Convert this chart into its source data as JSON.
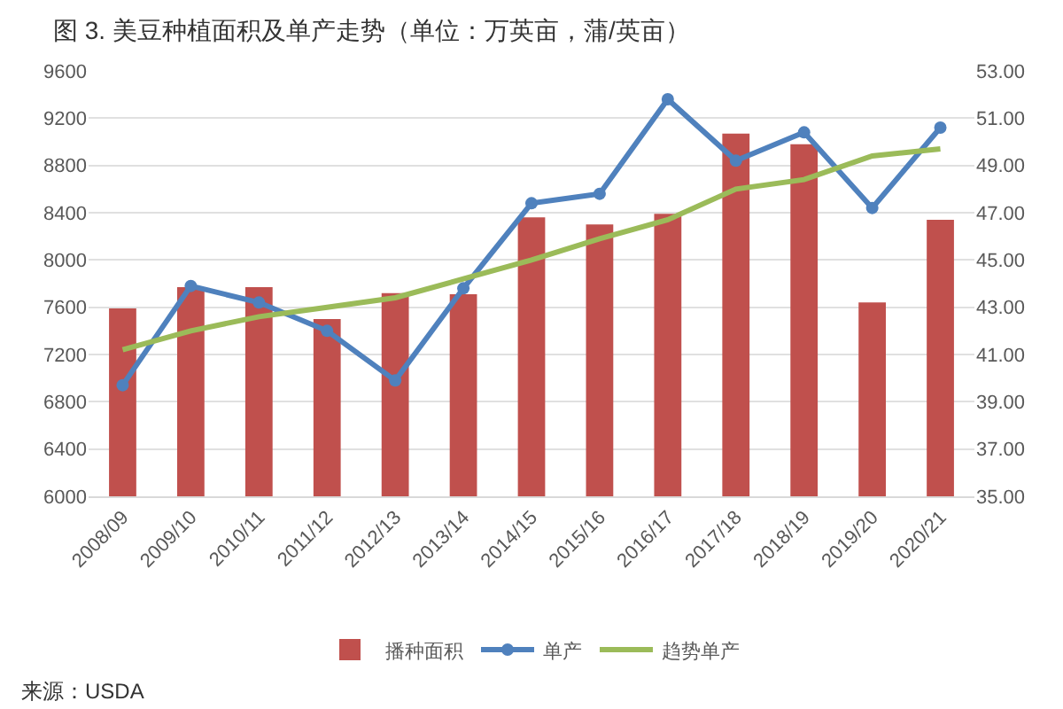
{
  "chart_data": {
    "type": "bar",
    "title": "图 3. 美豆种植面积及单产走势（单位：万英亩，蒲/英亩）",
    "categories": [
      "2008/09",
      "2009/10",
      "2010/11",
      "2011/12",
      "2012/13",
      "2013/14",
      "2014/15",
      "2015/16",
      "2016/17",
      "2017/18",
      "2018/19",
      "2019/20",
      "2020/21"
    ],
    "series": [
      {
        "name": "播种面积",
        "color": "#c0504d",
        "values": [
          7590,
          7770,
          7770,
          7500,
          7720,
          7710,
          8360,
          8300,
          8390,
          9070,
          8980,
          7640,
          8340
        ]
      },
      {
        "name": "单产",
        "type": "line",
        "axis": "y2",
        "marker": "circle",
        "color": "#4f81bd",
        "values": [
          39.7,
          43.9,
          43.2,
          42.0,
          39.9,
          43.8,
          47.4,
          47.8,
          51.8,
          49.2,
          50.4,
          47.2,
          50.6
        ]
      },
      {
        "name": "趋势单产",
        "type": "line",
        "axis": "y2",
        "marker": "none",
        "color": "#9bbb59",
        "values": [
          41.2,
          42.0,
          42.6,
          43.0,
          43.4,
          44.2,
          45.0,
          45.9,
          46.7,
          48.0,
          48.4,
          49.4,
          49.7
        ]
      }
    ],
    "ylim": [
      6000,
      9600
    ],
    "yticks": [
      6000,
      6400,
      6800,
      7200,
      7600,
      8000,
      8400,
      8800,
      9200,
      9600
    ],
    "y2lim": [
      35,
      53
    ],
    "y2ticks": [
      {
        "value": 35,
        "label": "35.00"
      },
      {
        "value": 37,
        "label": "37.00"
      },
      {
        "value": 39,
        "label": "39.00"
      },
      {
        "value": 41,
        "label": "41.00"
      },
      {
        "value": 43,
        "label": "43.00"
      },
      {
        "value": 45,
        "label": "45.00"
      },
      {
        "value": 47,
        "label": "47.00"
      },
      {
        "value": 49,
        "label": "49.00"
      },
      {
        "value": 51,
        "label": "51.00"
      },
      {
        "value": 53,
        "label": "53.00"
      }
    ],
    "grid": "y",
    "legend": "bottom",
    "line_style": "solid",
    "annotations": [
      "来源：USDA"
    ]
  }
}
